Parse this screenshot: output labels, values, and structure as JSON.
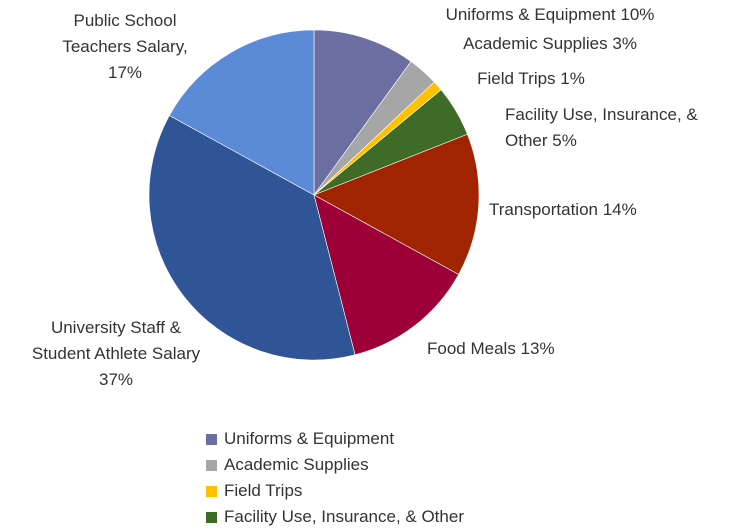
{
  "chart_data": {
    "type": "pie",
    "slices": [
      {
        "name": "Uniforms & Equipment",
        "value": 10,
        "color": "#6b6ea1",
        "label_lines": [
          "Uniforms & Equipment 10%"
        ]
      },
      {
        "name": "Academic Supplies",
        "value": 3,
        "color": "#a6a6a6",
        "label_lines": [
          "Academic Supplies 3%"
        ]
      },
      {
        "name": "Field Trips",
        "value": 1,
        "color": "#ffc000",
        "label_lines": [
          "Field Trips 1%"
        ]
      },
      {
        "name": "Facility Use, Insurance, & Other",
        "value": 5,
        "color": "#3e6b26",
        "label_lines": [
          "Facility Use, Insurance, &",
          "Other 5%"
        ]
      },
      {
        "name": "Transportation",
        "value": 14,
        "color": "#a02400",
        "label_lines": [
          "Transportation  14%"
        ]
      },
      {
        "name": "Food Meals",
        "value": 13,
        "color": "#9c0037",
        "label_lines": [
          "Food Meals 13%"
        ]
      },
      {
        "name": "University Staff & Student Athlete Salary",
        "value": 37,
        "color": "#2f5597",
        "label_lines": [
          "University Staff &",
          "Student Athlete Salary",
          "37%"
        ]
      },
      {
        "name": "Public School Teachers Salary",
        "value": 17,
        "color": "#5b8bd6",
        "label_lines": [
          "Public School",
          "Teachers Salary,",
          "17%"
        ]
      }
    ],
    "legend": {
      "placement": "bottom",
      "items": [
        {
          "label": "Uniforms & Equipment",
          "color": "#6b6ea1"
        },
        {
          "label": "Academic Supplies",
          "color": "#a6a6a6"
        },
        {
          "label": "Field Trips",
          "color": "#ffc000"
        },
        {
          "label": "Facility Use, Insurance, & Other",
          "color": "#3e6b26"
        }
      ]
    }
  }
}
